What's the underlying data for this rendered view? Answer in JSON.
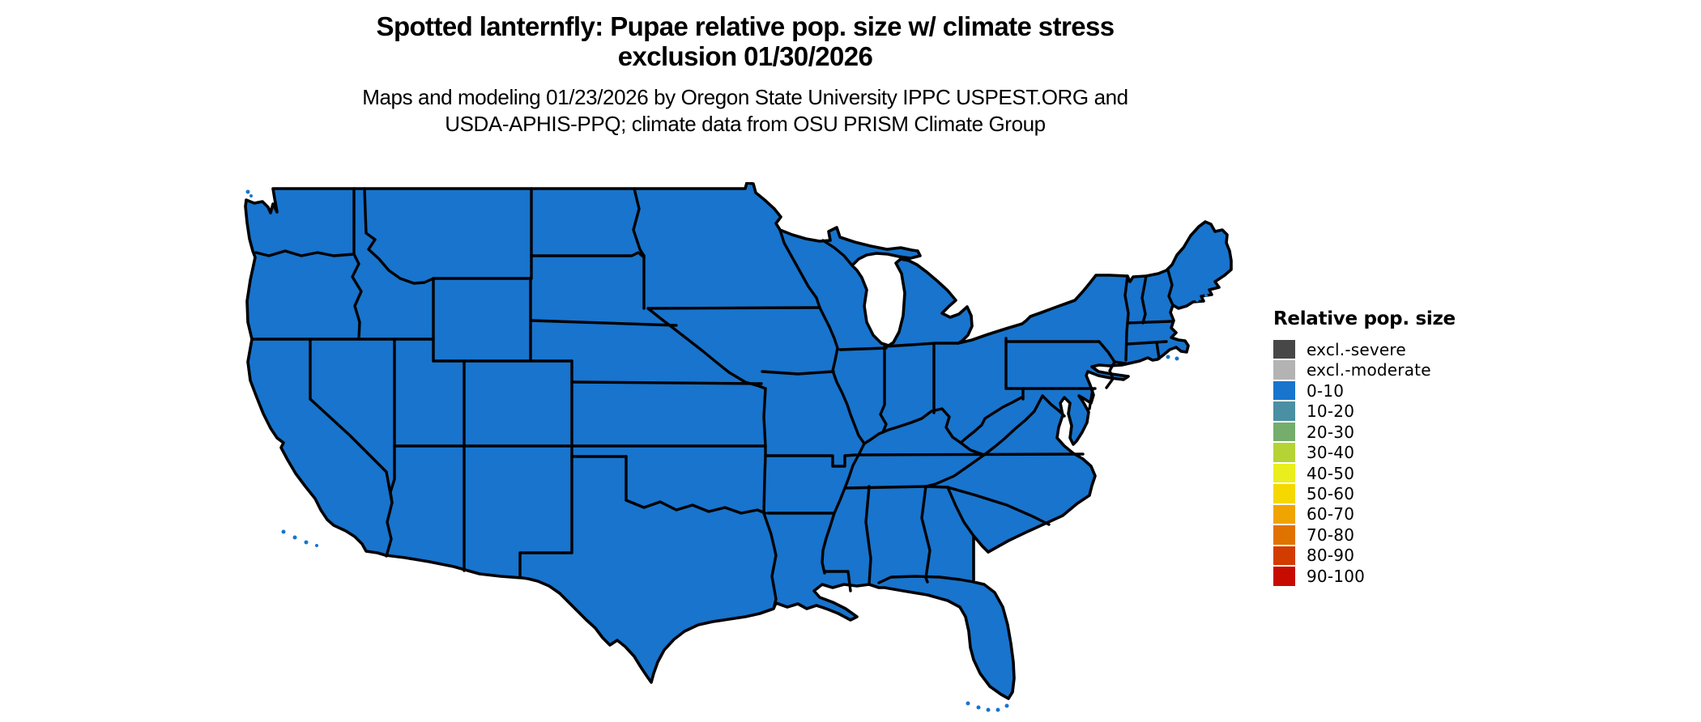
{
  "header": {
    "title_line1": "Spotted lanternfly: Pupae relative pop. size w/ climate stress",
    "title_line2": "exclusion 01/30/2026",
    "subtitle_line1": "Maps and modeling 01/23/2026 by Oregon State University IPPC USPEST.ORG and",
    "subtitle_line2": "USDA-APHIS-PPQ; climate data from OSU PRISM Climate Group"
  },
  "legend": {
    "title": "Relative pop. size",
    "items": [
      {
        "label": "excl.-severe",
        "color": "#474747"
      },
      {
        "label": "excl.-moderate",
        "color": "#B3B3B3"
      },
      {
        "label": "0-10",
        "color": "#1874CD"
      },
      {
        "label": "10-20",
        "color": "#4A8FA3"
      },
      {
        "label": "20-30",
        "color": "#74AD6C"
      },
      {
        "label": "30-40",
        "color": "#B5D334"
      },
      {
        "label": "40-50",
        "color": "#E9EE1C"
      },
      {
        "label": "50-60",
        "color": "#F5D800"
      },
      {
        "label": "60-70",
        "color": "#EFA400"
      },
      {
        "label": "70-80",
        "color": "#E07200"
      },
      {
        "label": "80-90",
        "color": "#D23C00"
      },
      {
        "label": "90-100",
        "color": "#C80B00"
      }
    ]
  },
  "map": {
    "fill_color": "#1874CD",
    "border_color": "#000000",
    "region": "Contiguous United States with state boundaries"
  },
  "chart_data": {
    "type": "choropleth_map",
    "title": "Spotted lanternfly: Pupae relative pop. size w/ climate stress exclusion 01/30/2026",
    "variable": "Relative pop. size",
    "map_date": "01/30/2026",
    "model_date": "01/23/2026",
    "classes": [
      "excl.-severe",
      "excl.-moderate",
      "0-10",
      "10-20",
      "20-30",
      "30-40",
      "40-50",
      "50-60",
      "60-70",
      "70-80",
      "80-90",
      "90-100"
    ],
    "class_colors": [
      "#474747",
      "#B3B3B3",
      "#1874CD",
      "#4A8FA3",
      "#74AD6C",
      "#B5D334",
      "#E9EE1C",
      "#F5D800",
      "#EFA400",
      "#E07200",
      "#D23C00",
      "#C80B00"
    ],
    "observed_values": "Entire visible contiguous US mapped in the 0-10 class (uniform blue fill)",
    "legend_position": "right"
  }
}
